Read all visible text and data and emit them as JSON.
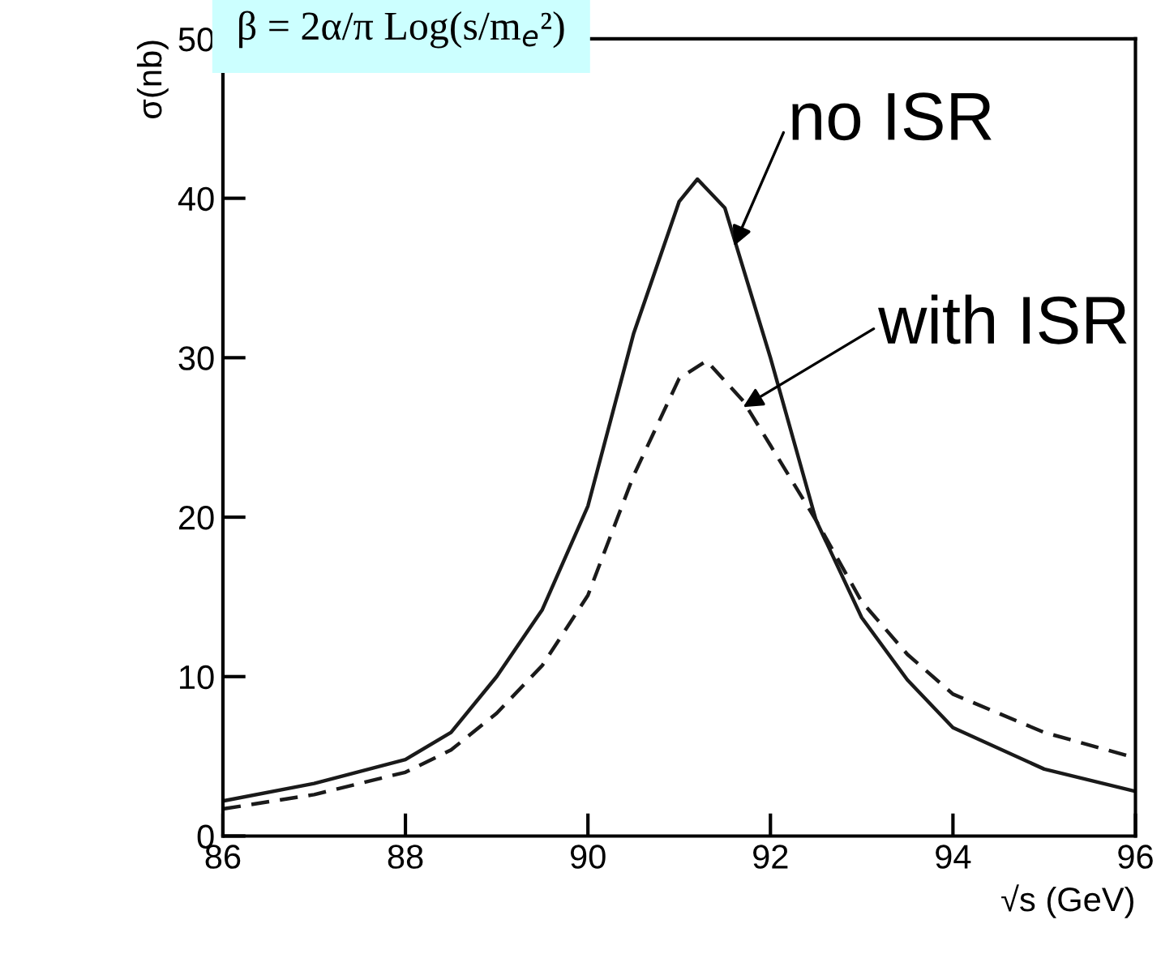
{
  "chart_data": {
    "type": "line",
    "xlabel": "√s (GeV)",
    "ylabel": "σ(nb)",
    "x": [
      86,
      87,
      88,
      88.5,
      89,
      89.5,
      90,
      90.5,
      91,
      91.2,
      91.5,
      92,
      92.5,
      93,
      93.5,
      94,
      95,
      96
    ],
    "series": [
      {
        "color": "#1a1a1a",
        "line_style": "solid",
        "values": [
          2.2,
          3.3,
          4.8,
          6.5,
          10,
          14.2,
          20.7,
          31.5,
          39.8,
          41.2,
          39.4,
          30,
          19.8,
          13.7,
          9.8,
          6.8,
          4.2,
          2.8
        ]
      },
      {
        "color": "#1a1a1a",
        "line_style": "dashed",
        "x": [
          86,
          87,
          88,
          88.5,
          89,
          89.5,
          90,
          90.5,
          91,
          91.3,
          91.7,
          92,
          92.5,
          93,
          93.5,
          94,
          95,
          96
        ],
        "values": [
          1.7,
          2.6,
          4,
          5.4,
          7.7,
          10.7,
          15.1,
          22.6,
          28.7,
          29.8,
          27.3,
          24.5,
          19.8,
          14.7,
          11.4,
          8.9,
          6.5,
          4.9
        ]
      }
    ],
    "xlim": [
      86,
      96
    ],
    "ylim": [
      0,
      50
    ],
    "xticks": [
      86,
      88,
      90,
      92,
      94,
      96
    ],
    "yticks": [
      0,
      10,
      20,
      30,
      40,
      50
    ],
    "grid": false,
    "legend": false,
    "annotations": [
      {
        "text": "no ISR",
        "x": 91.6,
        "y": 37
      },
      {
        "text": "with ISR",
        "x": 91.7,
        "y": 26.9
      },
      "β = 2α/π Log(s/m$_{e}$²)"
    ]
  }
}
